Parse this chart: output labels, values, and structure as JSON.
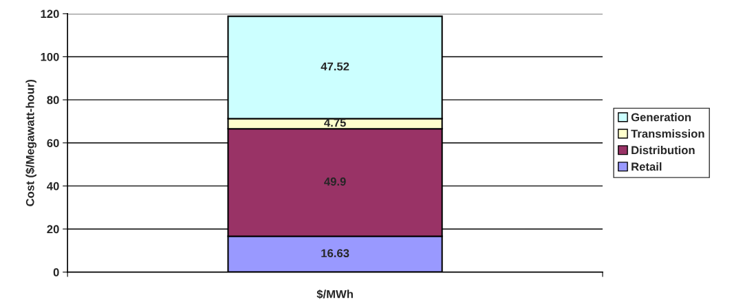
{
  "chart_data": {
    "type": "bar",
    "stacked": true,
    "categories": [
      null
    ],
    "xlabel": "$/MWh",
    "ylabel": "Cost ($/Megawatt-hour)",
    "ylim": [
      0,
      120
    ],
    "yticks": [
      0,
      20,
      40,
      60,
      80,
      100,
      120
    ],
    "grid": "y",
    "legend": "right",
    "data_labels": true,
    "series": [
      {
        "name": "Retail",
        "color": "#9999ff",
        "values": [
          16.63
        ]
      },
      {
        "name": "Distribution",
        "color": "#993366",
        "values": [
          49.9
        ]
      },
      {
        "name": "Transmission",
        "color": "#ffffcc",
        "values": [
          4.75
        ]
      },
      {
        "name": "Generation",
        "color": "#ccffff",
        "values": [
          47.52
        ]
      }
    ]
  }
}
